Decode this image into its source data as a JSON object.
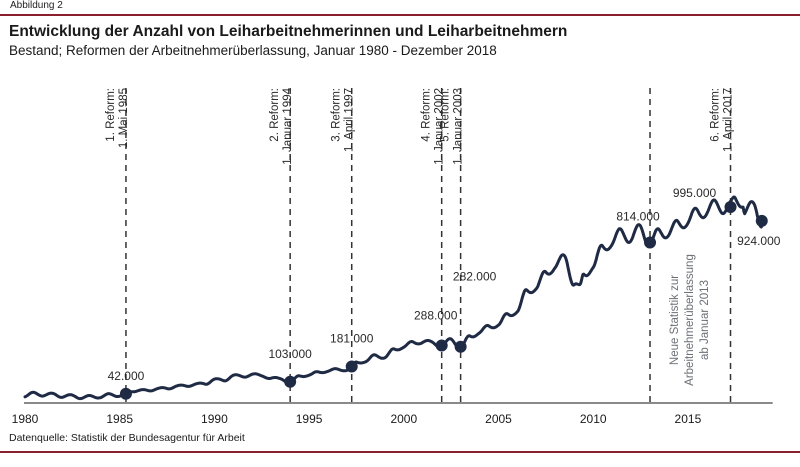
{
  "figure_label": "Abbildung 2",
  "source": "Datenquelle:  Statistik der Bundesagentur für Arbeit",
  "colors": {
    "rule": "#8a1f2e",
    "line": "#1f2a44",
    "dash": "#333333",
    "note": "#6b6f76"
  },
  "chart_data": {
    "type": "line",
    "title": "Entwicklung der Anzahl von Leiharbeitnehmerinnen und Leiharbeitnehmern",
    "subtitle": "Bestand; Reformen der Arbeitnehmerüberlassung, Januar 1980 - Dezember 2018",
    "xlabel": "",
    "ylabel": "",
    "xlim": [
      1980,
      2019
    ],
    "ylim": [
      0,
      1030000
    ],
    "grid": false,
    "x_ticks": [
      1980,
      1985,
      1990,
      1995,
      2000,
      2005,
      2010,
      2015
    ],
    "x_tick_labels": [
      "1980",
      "1985",
      "1990",
      "1995",
      "2000",
      "2005",
      "2010",
      "2015"
    ],
    "series": [
      {
        "name": "Leiharbeitnehmerinnen und Leiharbeitnehmer (Bestand)",
        "x": [
          1980.0,
          1980.5,
          1981.0,
          1981.5,
          1982.0,
          1982.5,
          1983.0,
          1983.5,
          1984.0,
          1984.5,
          1985.0,
          1985.33,
          1985.5,
          1986.0,
          1986.5,
          1987.0,
          1987.5,
          1988.0,
          1988.5,
          1989.0,
          1989.5,
          1990.0,
          1990.5,
          1991.0,
          1991.5,
          1992.0,
          1992.5,
          1993.0,
          1993.5,
          1994.0,
          1994.5,
          1995.0,
          1995.5,
          1996.0,
          1996.5,
          1997.0,
          1997.25,
          1997.5,
          1998.0,
          1998.5,
          1999.0,
          1999.5,
          2000.0,
          2000.5,
          2001.0,
          2001.5,
          2002.0,
          2002.5,
          2003.0,
          2003.5,
          2004.0,
          2004.5,
          2005.0,
          2005.5,
          2006.0,
          2006.5,
          2007.0,
          2007.5,
          2008.0,
          2008.5,
          2009.0,
          2009.3,
          2009.5,
          2010.0,
          2010.5,
          2011.0,
          2011.5,
          2012.0,
          2012.5,
          2013.0,
          2013.5,
          2014.0,
          2014.5,
          2015.0,
          2015.5,
          2016.0,
          2016.5,
          2017.0,
          2017.25,
          2017.5,
          2017.9,
          2018.0,
          2018.5,
          2018.9
        ],
        "values": [
          30000,
          45000,
          35000,
          40000,
          28000,
          32000,
          22000,
          28000,
          26000,
          38000,
          33000,
          42000,
          52000,
          62000,
          55000,
          72000,
          65000,
          85000,
          78000,
          95000,
          88000,
          120000,
          105000,
          140000,
          125000,
          145000,
          130000,
          125000,
          115000,
          103000,
          130000,
          140000,
          150000,
          160000,
          165000,
          165000,
          181000,
          200000,
          210000,
          235000,
          230000,
          265000,
          285000,
          300000,
          310000,
          300000,
          288000,
          315000,
          282000,
          330000,
          360000,
          380000,
          400000,
          440000,
          470000,
          560000,
          590000,
          650000,
          700000,
          730000,
          610000,
          580000,
          640000,
          700000,
          780000,
          820000,
          860000,
          840000,
          880000,
          814000,
          860000,
          870000,
          900000,
          930000,
          960000,
          980000,
          1000000,
          995000,
          995000,
          1020000,
          1030000,
          980000,
          990000,
          924000
        ]
      }
    ],
    "point_labels": [
      {
        "x": 1985.33,
        "value": 42000,
        "label": "42.000"
      },
      {
        "x": 1994.0,
        "value": 103000,
        "label": "103.000"
      },
      {
        "x": 1997.25,
        "value": 181000,
        "label": "181.000"
      },
      {
        "x": 2002.0,
        "value": 288000,
        "label": "288.000"
      },
      {
        "x": 2003.0,
        "value": 282000,
        "label": "282.000"
      },
      {
        "x": 2013.0,
        "value": 814000,
        "label": "814.000"
      },
      {
        "x": 2017.25,
        "value": 995000,
        "label": "995.000"
      },
      {
        "x": 2018.9,
        "value": 924000,
        "label": "924.000"
      }
    ],
    "reference_lines": [
      {
        "x": 1985.33,
        "line1": "1. Reform:",
        "line2": "1. Mai 1985"
      },
      {
        "x": 1994.0,
        "line1": "2. Reform:",
        "line2": "1. Januar 1994"
      },
      {
        "x": 1997.25,
        "line1": "3. Reform:",
        "line2": "1. April 1997"
      },
      {
        "x": 2002.0,
        "line1": "4. Reform:",
        "line2": "1. Januar 2002"
      },
      {
        "x": 2003.0,
        "line1": "5. Reform:",
        "line2": "1. Januar 2003"
      },
      {
        "x": 2013.0,
        "line1": "",
        "line2": ""
      },
      {
        "x": 2017.25,
        "line1": "6. Reform:",
        "line2": "1. April 2017"
      }
    ],
    "annotation_note": {
      "x": 2013.0,
      "lines": [
        "Neue Statistik zur",
        "Arbeitnehmerüberlassung",
        "ab Januar 2013"
      ]
    }
  }
}
